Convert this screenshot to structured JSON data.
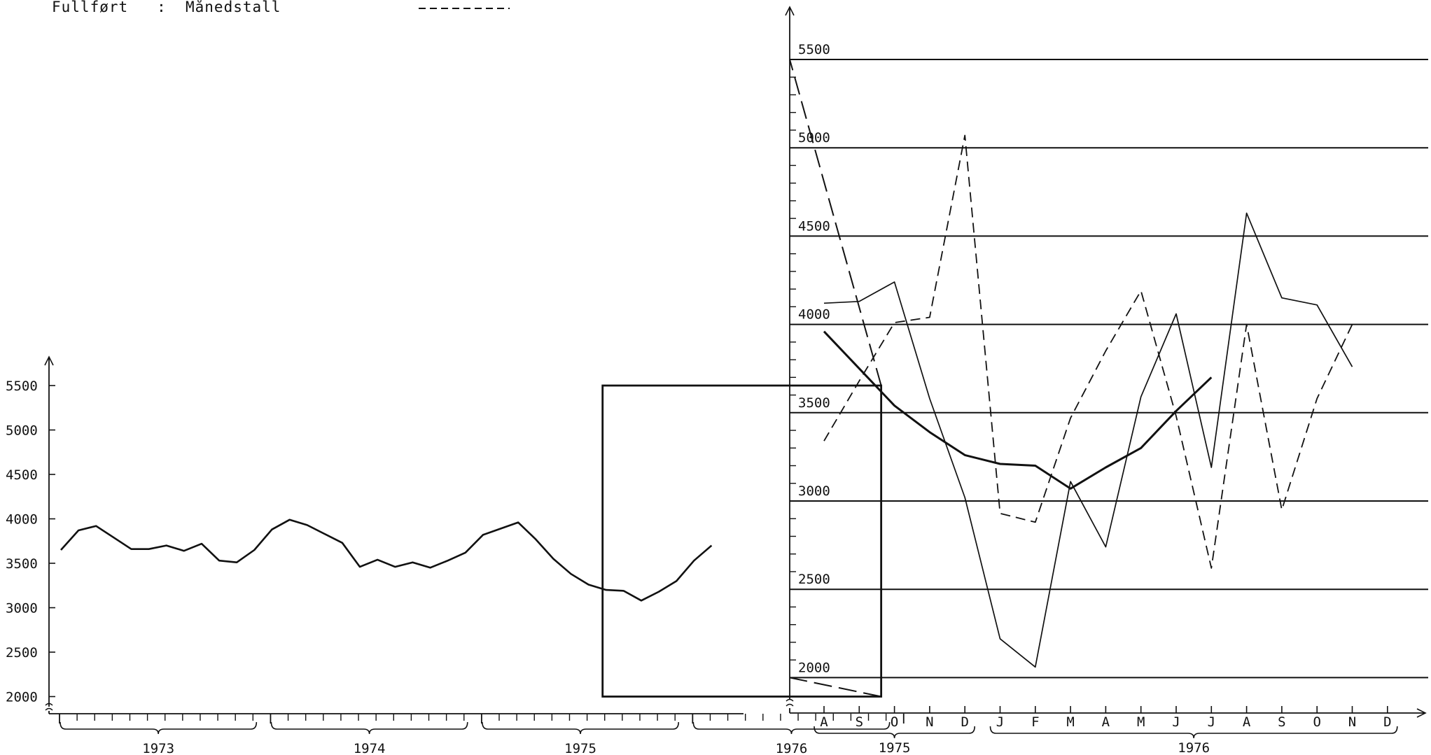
{
  "legend": {
    "text": "Fullført   :  Månedstall"
  },
  "chart_data": [
    {
      "type": "line",
      "ylim": [
        2000,
        5500
      ],
      "yticks": [
        "2000",
        "2500",
        "3000",
        "3500",
        "4000",
        "4500",
        "5000",
        "5500"
      ],
      "year_labels": [
        "1973",
        "1974",
        "1975",
        "1976"
      ],
      "x_start": "1973-01",
      "series": [
        {
          "values": [
            3650,
            3870,
            3920,
            3790,
            3660,
            3660,
            3700,
            3640,
            3720,
            3530,
            3510,
            3650,
            3880,
            3990,
            3930,
            3830,
            3730,
            3460,
            3540,
            3460,
            3510,
            3450,
            3530,
            3620,
            3820,
            3890,
            3960,
            3770,
            3550,
            3380,
            3260,
            3200,
            3190,
            3080,
            3180,
            3300,
            3530,
            3700
          ]
        }
      ],
      "zoom_box": {
        "x_from": "1975-08",
        "x_to": "1976-12",
        "y_from": 2000,
        "y_to": 5500
      }
    },
    {
      "type": "line",
      "ylim": [
        2000,
        5500
      ],
      "yticks": [
        "2000",
        "2500",
        "3000",
        "3500",
        "4000",
        "4500",
        "5000",
        "5500"
      ],
      "categories": [
        "A",
        "S",
        "O",
        "N",
        "D",
        "J",
        "F",
        "M",
        "A",
        "M",
        "J",
        "J",
        "A",
        "S",
        "O",
        "N",
        "D"
      ],
      "year_labels": [
        "1975",
        "1976"
      ],
      "series": [
        {
          "style": "thick-solid",
          "values": [
            3960,
            3750,
            3540,
            3390,
            3260,
            3210,
            3200,
            3070,
            3190,
            3300,
            3510,
            3700,
            null,
            null,
            null,
            null,
            null
          ]
        },
        {
          "style": "thin-solid",
          "values": [
            4120,
            4130,
            4240,
            3580,
            3020,
            2220,
            2060,
            3110,
            2740,
            3590,
            4060,
            3190,
            4630,
            4150,
            4110,
            3760,
            null
          ]
        },
        {
          "style": "dashed",
          "values": [
            3340,
            3680,
            4010,
            4040,
            5070,
            2930,
            2880,
            3470,
            3850,
            4190,
            3480,
            2620,
            4000,
            2950,
            3580,
            4000,
            null
          ]
        }
      ]
    }
  ]
}
